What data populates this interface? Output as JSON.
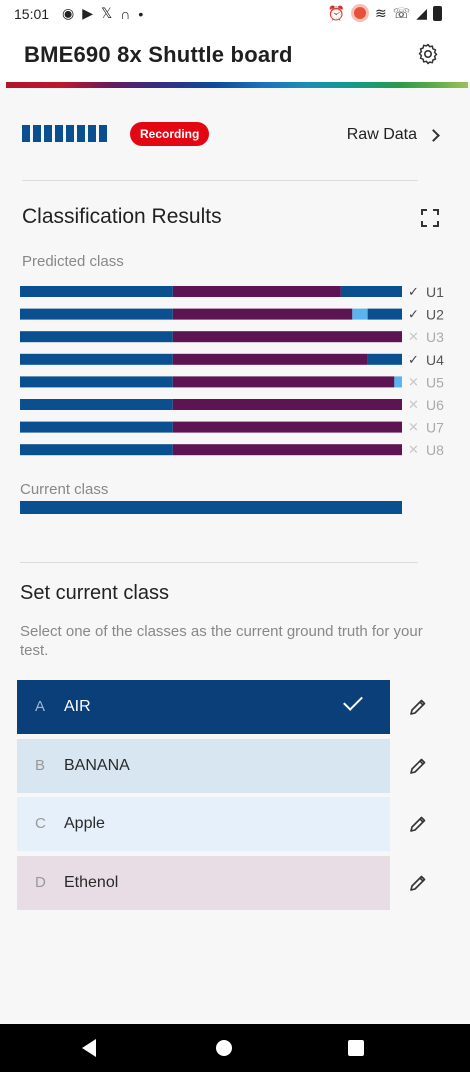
{
  "status_bar": {
    "time": "15:01",
    "left_icons": [
      "record-status-icon",
      "youtube-icon",
      "x-icon",
      "home-app-icon",
      "dot-icon"
    ],
    "right_icons": [
      "alarm-icon",
      "do-not-disturb-icon",
      "wifi-icon",
      "call-icon",
      "signal-icon",
      "battery-icon"
    ]
  },
  "app_bar": {
    "title": "BME690 8x Shuttle board",
    "settings_icon": "gear-icon"
  },
  "recording": {
    "badge": "Recording",
    "raw_data_label": "Raw Data",
    "bar_count": 8
  },
  "classification": {
    "title": "Classification Results",
    "predicted_label": "Predicted class",
    "current_label": "Current class",
    "colors": {
      "air": "#0a4f8f",
      "banana": "#5ab4f0",
      "ethenol": "#5c1452",
      "current": "#0a4f8f"
    },
    "units": [
      {
        "label": "U1",
        "mark": "check",
        "fractions": {
          "air": 0.4,
          "ethenol": 0.44,
          "banana": 0.0,
          "air_tail": 0.16
        }
      },
      {
        "label": "U2",
        "mark": "check",
        "fractions": {
          "air": 0.4,
          "ethenol": 0.47,
          "banana": 0.04,
          "air_tail": 0.09
        }
      },
      {
        "label": "U3",
        "mark": "cross",
        "fractions": {
          "air": 0.4,
          "ethenol": 0.6,
          "banana": 0.0,
          "air_tail": 0.0
        }
      },
      {
        "label": "U4",
        "mark": "check",
        "fractions": {
          "air": 0.4,
          "ethenol": 0.51,
          "banana": 0.0,
          "air_tail": 0.09
        }
      },
      {
        "label": "U5",
        "mark": "cross",
        "fractions": {
          "air": 0.4,
          "ethenol": 0.58,
          "banana": 0.02,
          "air_tail": 0.0
        }
      },
      {
        "label": "U6",
        "mark": "cross",
        "fractions": {
          "air": 0.4,
          "ethenol": 0.6,
          "banana": 0.0,
          "air_tail": 0.0
        }
      },
      {
        "label": "U7",
        "mark": "cross",
        "fractions": {
          "air": 0.4,
          "ethenol": 0.6,
          "banana": 0.0,
          "air_tail": 0.0
        }
      },
      {
        "label": "U8",
        "mark": "cross",
        "fractions": {
          "air": 0.4,
          "ethenol": 0.6,
          "banana": 0.0,
          "air_tail": 0.0
        }
      }
    ],
    "check_glyph": "✓",
    "cross_glyph": "✕"
  },
  "set_class": {
    "title": "Set current class",
    "hint": "Select one of the classes as the current ground truth for your test.",
    "classes": [
      {
        "letter": "A",
        "name": "AIR",
        "selected": true,
        "bg": "#0a3f7a",
        "fg": "#ffffff"
      },
      {
        "letter": "B",
        "name": "BANANA",
        "selected": false,
        "bg": "#d7e6f0",
        "fg": "#2a2a2a"
      },
      {
        "letter": "C",
        "name": "Apple",
        "selected": false,
        "bg": "#e6f0fa",
        "fg": "#2a2a2a"
      },
      {
        "letter": "D",
        "name": "Ethenol",
        "selected": false,
        "bg": "#e8dde4",
        "fg": "#2a2a2a"
      }
    ]
  },
  "nav_bar": {
    "icons": [
      "back-icon",
      "home-icon",
      "recents-icon"
    ]
  }
}
